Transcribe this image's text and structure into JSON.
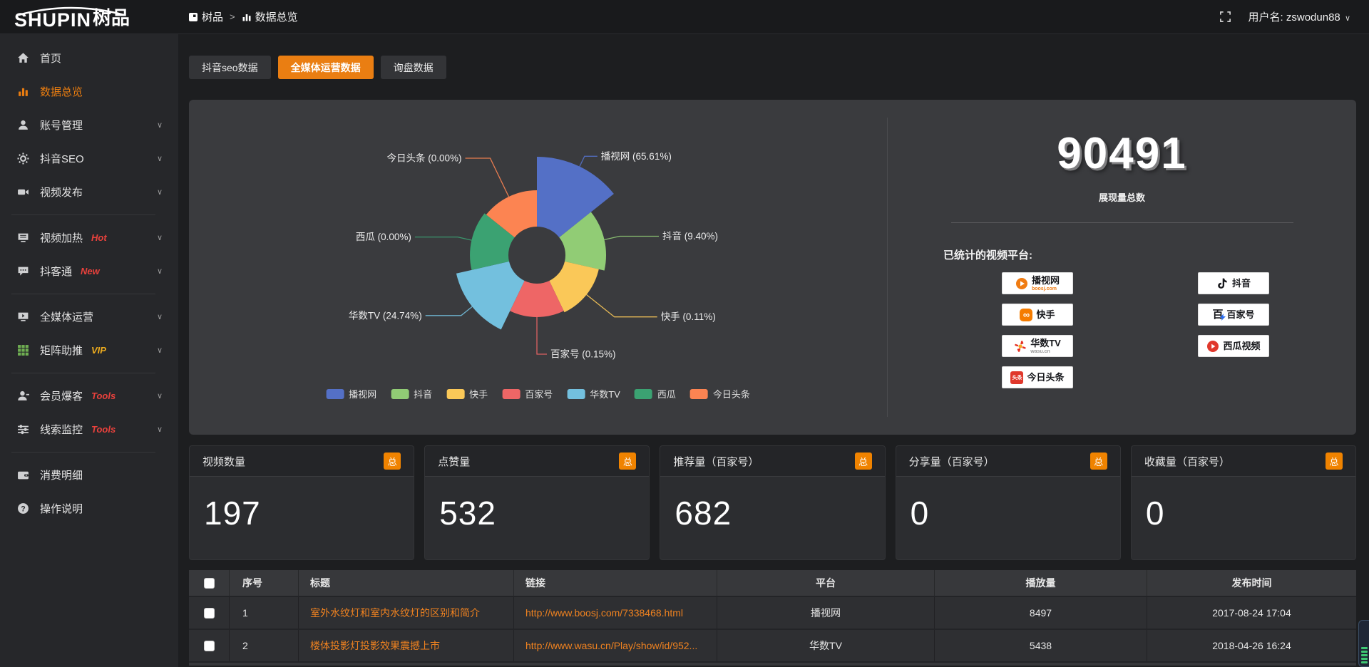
{
  "topbar": {
    "logo_text": "SHUPIN",
    "logo_suffix": "树品",
    "breadcrumb": {
      "root": "树品",
      "separator": ">",
      "current": "数据总览"
    },
    "username_label": "用户名:",
    "username": "zswodun88"
  },
  "sidebar": {
    "items": [
      {
        "label": "首页",
        "icon": "home-icon"
      },
      {
        "label": "数据总览",
        "icon": "bar-chart-icon",
        "active": true
      },
      {
        "label": "账号管理",
        "icon": "user-icon",
        "chevron": true
      },
      {
        "label": "抖音SEO",
        "icon": "gear-icon",
        "chevron": true
      },
      {
        "label": "视频发布",
        "icon": "video-camera-icon",
        "chevron": true
      },
      {
        "divider": true
      },
      {
        "label": "视频加热",
        "icon": "monitor-icon",
        "badge": "Hot",
        "badge_color": "#e8413c",
        "chevron": true
      },
      {
        "label": "抖客通",
        "icon": "chat-icon",
        "badge": "New",
        "badge_color": "#e8413c",
        "chevron": true
      },
      {
        "divider": true
      },
      {
        "label": "全媒体运营",
        "icon": "screen-icon",
        "chevron": true
      },
      {
        "label": "矩阵助推",
        "icon": "grid-icon",
        "icon_class": "icon-green",
        "badge": "VIP",
        "badge_color": "#efad1e",
        "chevron": true
      },
      {
        "divider": true
      },
      {
        "label": "会员爆客",
        "icon": "member-icon",
        "badge": "Tools",
        "badge_color": "#e8413c",
        "chevron": true
      },
      {
        "label": "线索监控",
        "icon": "sliders-icon",
        "badge": "Tools",
        "badge_color": "#e8413c",
        "chevron": true
      },
      {
        "divider": true
      },
      {
        "label": "消费明细",
        "icon": "wallet-icon"
      },
      {
        "label": "操作说明",
        "icon": "help-icon"
      }
    ]
  },
  "tabs": [
    {
      "label": "抖音seo数据",
      "active": false
    },
    {
      "label": "全媒体运营数据",
      "active": true
    },
    {
      "label": "询盘数据",
      "active": false
    }
  ],
  "chart_data": {
    "type": "pie",
    "variant": "nightingale-donut",
    "series": [
      {
        "name": "播视网",
        "pct": 65.61,
        "label": "播视网 (65.61%)",
        "color": "#5470c6"
      },
      {
        "name": "抖音",
        "pct": 9.4,
        "label": "抖音 (9.40%)",
        "color": "#91cc75"
      },
      {
        "name": "快手",
        "pct": 0.11,
        "label": "快手 (0.11%)",
        "color": "#fac858"
      },
      {
        "name": "百家号",
        "pct": 0.15,
        "label": "百家号 (0.15%)",
        "color": "#ee6666"
      },
      {
        "name": "华数TV",
        "pct": 24.74,
        "label": "华数TV (24.74%)",
        "color": "#73c0de"
      },
      {
        "name": "西瓜",
        "pct": 0.0,
        "label": "西瓜 (0.00%)",
        "color": "#3ba272"
      },
      {
        "name": "今日头条",
        "pct": 0.0,
        "label": "今日头条 (0.00%)",
        "color": "#fc8452"
      }
    ],
    "legend": [
      "播视网",
      "抖音",
      "快手",
      "百家号",
      "华数TV",
      "西瓜",
      "今日头条"
    ],
    "legend_position": "bottom"
  },
  "summary": {
    "total": "90491",
    "total_label": "展现量总数",
    "platforms_label": "已统计的视频平台:",
    "platforms": [
      {
        "name": "播视网",
        "sub": "boosj.com",
        "icon": "boosj-logo"
      },
      {
        "name": "抖音",
        "icon": "douyin-logo"
      },
      {
        "name": "快手",
        "icon": "kuaishou-logo"
      },
      {
        "name": "百家号",
        "icon": "baijiahao-logo"
      },
      {
        "name": "华数TV",
        "sub": "wasu.cn",
        "icon": "wasu-logo"
      },
      {
        "name": "西瓜视频",
        "icon": "xigua-logo"
      },
      {
        "name": "今日头条",
        "icon": "toutiao-logo"
      }
    ]
  },
  "stat_cards": [
    {
      "title": "视频数量",
      "badge": "总",
      "value": "197"
    },
    {
      "title": "点赞量",
      "badge": "总",
      "value": "532"
    },
    {
      "title": "推荐量（百家号）",
      "badge": "总",
      "value": "682"
    },
    {
      "title": "分享量（百家号）",
      "badge": "总",
      "value": "0"
    },
    {
      "title": "收藏量（百家号）",
      "badge": "总",
      "value": "0"
    }
  ],
  "table": {
    "headers": [
      "序号",
      "标题",
      "链接",
      "平台",
      "播放量",
      "发布时间"
    ],
    "rows": [
      {
        "index": "1",
        "title": "室外水纹灯和室内水纹灯的区别和简介",
        "link": "http://www.boosj.com/7338468.html",
        "platform": "播视网",
        "plays": "8497",
        "time": "2017-08-24 17:04"
      },
      {
        "index": "2",
        "title": "楼体投影灯投影效果震撼上市",
        "link": "http://www.wasu.cn/Play/show/id/952...",
        "platform": "华数TV",
        "plays": "5438",
        "time": "2018-04-26 16:24"
      }
    ]
  }
}
